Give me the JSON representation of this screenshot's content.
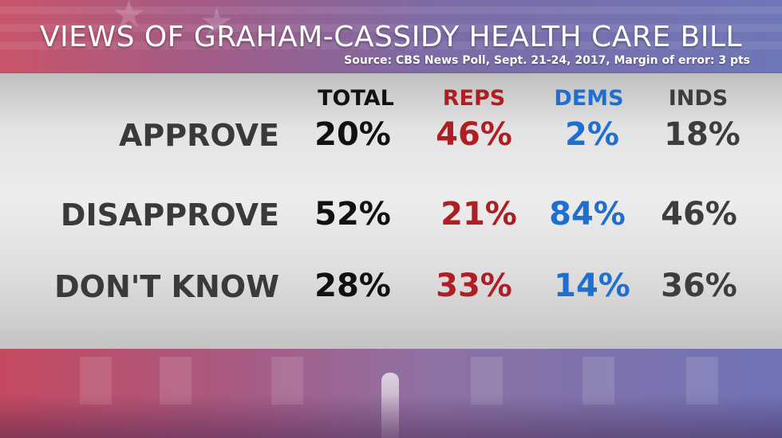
{
  "title": "VIEWS OF GRAHAM-CASSIDY HEALTH CARE BILL",
  "source": "Source: CBS News Poll, Sept. 21-24, 2017, Margin of error: 3 pts",
  "colors": {
    "total": "#111111",
    "reps": "#b01e23",
    "dems": "#1f6fd0",
    "inds": "#3d3d3d",
    "label": "#3a3a3a"
  },
  "chart_data": {
    "type": "table",
    "title": "VIEWS OF GRAHAM-CASSIDY HEALTH CARE BILL",
    "columns": [
      "TOTAL",
      "REPS",
      "DEMS",
      "INDS"
    ],
    "rows": [
      {
        "label": "APPROVE",
        "values": [
          "20%",
          "46%",
          "2%",
          "18%"
        ]
      },
      {
        "label": "DISAPPROVE",
        "values": [
          "52%",
          "21%",
          "84%",
          "46%"
        ]
      },
      {
        "label": "DON'T KNOW",
        "values": [
          "28%",
          "33%",
          "14%",
          "36%"
        ]
      }
    ]
  }
}
